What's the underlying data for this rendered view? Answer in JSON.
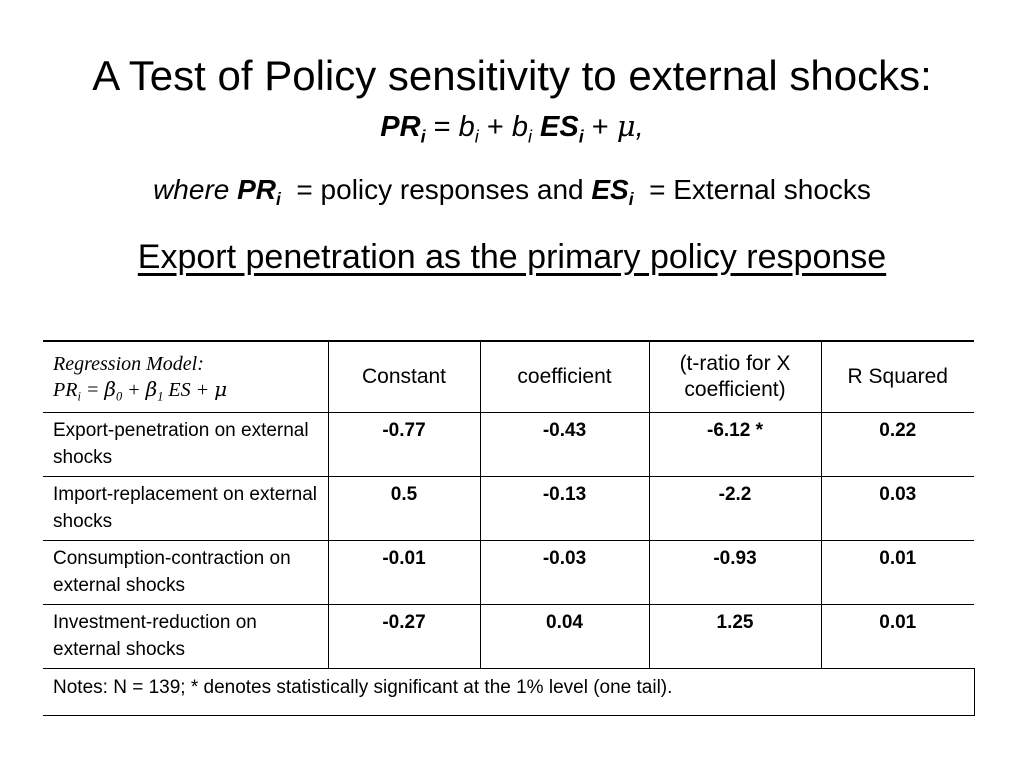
{
  "title": "A Test of Policy sensitivity to external shocks:",
  "formula": {
    "lhs": "PR",
    "lhs_sub": "i",
    "eq": " = ",
    "b1": "b",
    "b1_sub": "i",
    "plus1": " + ",
    "b2": "b",
    "b2_sub": "i",
    "rhs": " ES",
    "rhs_sub": "i",
    "plus2": " + ",
    "mu": "μ",
    "tail": ","
  },
  "where_line": {
    "where": "where ",
    "pr": "PR",
    "pr_sub": "i",
    "mid": "  = policy responses and ",
    "es": "ES",
    "es_sub": "i",
    "end": "  = External shocks"
  },
  "subtitle": "Export penetration as the primary policy response",
  "table": {
    "model_label": "Regression Model:",
    "model_eq": {
      "pr": "PR",
      "pr_sub": "i",
      "eq": " = ",
      "beta0": "β",
      "beta0_sub": "0",
      "plus1": " + ",
      "beta1": "β",
      "beta1_sub": "1",
      "es": " ES",
      "plus2": " + ",
      "mu": "μ"
    },
    "headers": [
      "Constant",
      "coefficient",
      "(t-ratio for X coefficient)",
      "R Squared"
    ],
    "rows": [
      {
        "label": "Export-penetration on external shocks",
        "constant": "-0.77",
        "coefficient": "-0.43",
        "t_ratio": "-6.12 *",
        "r_squared": "0.22"
      },
      {
        "label": "Import-replacement on external shocks",
        "constant": "0.5",
        "coefficient": "-0.13",
        "t_ratio": "-2.2",
        "r_squared": "0.03"
      },
      {
        "label": "Consumption-contraction on external shocks",
        "constant": "-0.01",
        "coefficient": "-0.03",
        "t_ratio": "-0.93",
        "r_squared": "0.01"
      },
      {
        "label": "Investment-reduction on external shocks",
        "constant": "-0.27",
        "coefficient": "0.04",
        "t_ratio": "1.25",
        "r_squared": "0.01"
      }
    ],
    "notes": "Notes: N = 139; * denotes statistically significant at the 1% level (one tail)."
  }
}
